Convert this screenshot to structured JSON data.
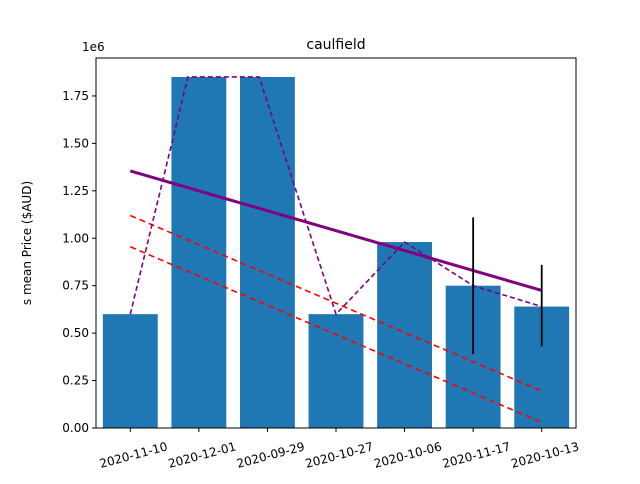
{
  "chart_data": {
    "type": "bar",
    "title": "caulfield",
    "xlabel": "",
    "ylabel": "s mean Price ($AUD)",
    "y_offset_label": "1e6",
    "categories": [
      "2020-11-10",
      "2020-12-01",
      "2020-09-29",
      "2020-10-27",
      "2020-10-06",
      "2020-11-17",
      "2020-10-13"
    ],
    "values": [
      0.6,
      1.85,
      1.85,
      0.6,
      0.98,
      0.75,
      0.64
    ],
    "error_bars": [
      null,
      null,
      null,
      null,
      null,
      [
        0.39,
        1.11
      ],
      [
        0.43,
        0.86
      ]
    ],
    "ylim": [
      0,
      1.95
    ],
    "yticks": [
      0.0,
      0.25,
      0.5,
      0.75,
      1.0,
      1.25,
      1.5,
      1.75
    ],
    "ytick_labels": [
      "0.00",
      "0.25",
      "0.50",
      "0.75",
      "1.00",
      "1.25",
      "1.50",
      "1.75"
    ],
    "grid": false,
    "tick_label_rotation_deg": 15,
    "overlays": [
      {
        "kind": "trend",
        "style": "solid",
        "color": "#800080",
        "start": 1.355,
        "end": 0.725
      },
      {
        "kind": "band",
        "style": "dashed",
        "color": "#ff0000",
        "start": 1.12,
        "end": 0.195
      },
      {
        "kind": "band",
        "style": "dashed",
        "color": "#ff0000",
        "start": 0.955,
        "end": 0.03
      },
      {
        "kind": "profile",
        "style": "dashed",
        "color": "#800080",
        "values": [
          0.6,
          1.85,
          1.85,
          0.6,
          0.98,
          0.75,
          0.64
        ]
      }
    ],
    "colors": {
      "bar": "#1f77b4",
      "error": "#000000"
    }
  }
}
